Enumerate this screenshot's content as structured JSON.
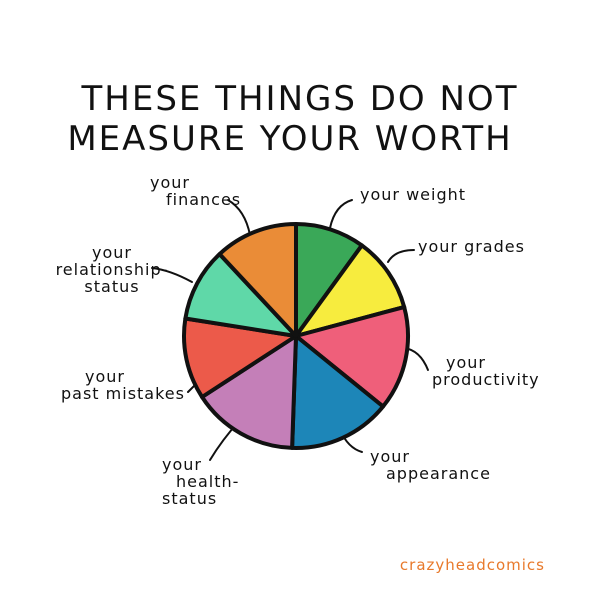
{
  "chart_data": {
    "type": "pie",
    "title": [
      "THESE THINGS DO NOT",
      "MEASURE YOUR WORTH"
    ],
    "categories": [
      [
        "your weight"
      ],
      [
        "your grades"
      ],
      [
        "your",
        "productivity"
      ],
      [
        "your",
        "appearance"
      ],
      [
        "your",
        "health-",
        "status"
      ],
      [
        "your",
        "past mistakes"
      ],
      [
        "your",
        "relationship-",
        "status"
      ],
      [
        "your",
        "finances"
      ]
    ],
    "values": [
      36,
      39,
      54,
      53,
      55,
      42,
      38,
      43
    ],
    "colors": [
      "#3aa858",
      "#f7ec3e",
      "#ef5f7a",
      "#1d86b8",
      "#c47fb8",
      "#ec5a4a",
      "#5fd8a8",
      "#ea8c37"
    ]
  },
  "credit": "crazyheadcomics"
}
